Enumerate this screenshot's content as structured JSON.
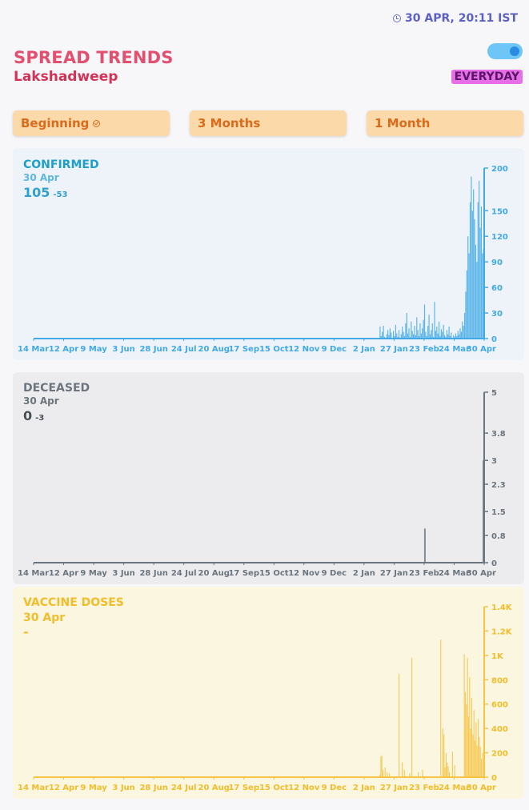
{
  "header": {
    "timestamp": "30 APR, 20:11 IST",
    "title": "SPREAD TRENDS",
    "subtitle": "Lakshadweep",
    "mode_label": "EVERYDAY"
  },
  "tabs": [
    {
      "label": "Beginning",
      "selected": true
    },
    {
      "label": "3 Months",
      "selected": false
    },
    {
      "label": "1 Month",
      "selected": false
    }
  ],
  "colors": {
    "confirmed": "#41a9e6",
    "confirmed_text": "#1e9fc9",
    "deceased": "#6c757d",
    "vaccine": "#f6c343"
  },
  "x_ticks": [
    "14 Mar",
    "12 Apr",
    "9 May",
    "3 Jun",
    "28 Jun",
    "24 Jul",
    "20 Aug",
    "17 Sep",
    "15 Oct",
    "12 Nov",
    "9 Dec",
    "2 Jan",
    "27 Jan",
    "23 Feb",
    "24 Mar",
    "30 Apr"
  ],
  "panels": {
    "confirmed": {
      "label": "CONFIRMED",
      "date": "30 Apr",
      "value": "105",
      "delta": "-53"
    },
    "deceased": {
      "label": "DECEASED",
      "date": "30 Apr",
      "value": "0",
      "delta": "-3"
    },
    "vaccine": {
      "label": "VACCINE DOSES",
      "date": "30 Apr",
      "value": "-",
      "delta": ""
    }
  },
  "chart_data": [
    {
      "type": "bar",
      "name": "CONFIRMED",
      "y_ticks": [
        "0",
        "30",
        "60",
        "90",
        "120",
        "150",
        "200"
      ],
      "ylim": [
        0,
        200
      ],
      "x_range": [
        "14 Mar",
        "30 Apr"
      ],
      "values_note_excluded": true,
      "values": [
        0,
        0,
        0,
        0,
        0,
        0,
        0,
        0,
        0,
        0,
        0,
        0,
        0,
        0,
        0,
        0,
        0,
        0,
        0,
        0,
        0,
        0,
        0,
        0,
        0,
        0,
        0,
        0,
        0,
        0,
        0,
        0,
        0,
        0,
        0,
        0,
        0,
        0,
        0,
        0,
        0,
        0,
        0,
        0,
        0,
        0,
        0,
        0,
        0,
        0,
        0,
        0,
        0,
        0,
        0,
        0,
        0,
        0,
        0,
        0,
        0,
        0,
        0,
        0,
        0,
        0,
        0,
        0,
        0,
        0,
        0,
        0,
        0,
        0,
        0,
        0,
        0,
        0,
        0,
        0,
        0,
        0,
        0,
        0,
        0,
        0,
        0,
        0,
        0,
        0,
        0,
        0,
        0,
        0,
        0,
        0,
        0,
        0,
        0,
        0,
        0,
        0,
        0,
        0,
        0,
        0,
        0,
        0,
        0,
        0,
        0,
        0,
        0,
        0,
        0,
        0,
        0,
        0,
        0,
        0,
        0,
        0,
        0,
        0,
        0,
        0,
        0,
        0,
        0,
        0,
        0,
        0,
        0,
        0,
        0,
        0,
        0,
        0,
        0,
        0,
        0,
        0,
        0,
        0,
        0,
        0,
        0,
        0,
        0,
        0,
        0,
        0,
        0,
        0,
        0,
        0,
        0,
        0,
        0,
        0,
        0,
        0,
        0,
        0,
        0,
        0,
        0,
        0,
        0,
        0,
        0,
        0,
        0,
        0,
        0,
        0,
        0,
        0,
        0,
        0,
        0,
        0,
        0,
        0,
        0,
        0,
        0,
        0,
        0,
        0,
        0,
        0,
        0,
        0,
        0,
        0,
        0,
        0,
        0,
        0,
        0,
        0,
        0,
        0,
        0,
        0,
        0,
        0,
        0,
        0,
        0,
        0,
        0,
        0,
        0,
        0,
        0,
        0,
        0,
        0,
        0,
        0,
        0,
        0,
        0,
        0,
        0,
        0,
        0,
        0,
        0,
        0,
        0,
        0,
        0,
        0,
        0,
        0,
        0,
        0,
        0,
        0,
        0,
        0,
        0,
        0,
        0,
        0,
        0,
        0,
        0,
        0,
        0,
        0,
        0,
        0,
        0,
        0,
        0,
        0,
        0,
        0,
        0,
        0,
        0,
        0,
        0,
        0,
        0,
        0,
        0,
        0,
        0,
        0,
        0,
        0,
        0,
        0,
        0,
        0,
        0,
        0,
        0,
        0,
        0,
        0,
        0,
        0,
        0,
        0,
        0,
        0,
        0,
        0,
        0,
        0,
        0,
        0,
        0,
        0,
        0,
        0,
        0,
        0,
        0,
        0,
        0,
        0,
        0,
        0,
        0,
        14,
        3,
        8,
        15,
        2,
        0,
        5,
        10,
        4,
        12,
        7,
        0,
        9,
        3,
        16,
        6,
        2,
        10,
        0,
        5,
        14,
        8,
        3,
        18,
        30,
        6,
        12,
        2,
        20,
        9,
        5,
        15,
        4,
        25,
        10,
        3,
        18,
        6,
        12,
        22,
        40,
        8,
        3,
        15,
        28,
        5,
        10,
        18,
        2,
        43,
        9,
        14,
        6,
        20,
        3,
        11,
        8,
        16,
        4,
        2,
        10,
        5,
        14,
        3,
        7,
        0,
        4,
        2,
        6,
        3,
        9,
        5,
        12,
        8,
        20,
        15,
        30,
        55,
        80,
        120,
        100,
        160,
        190,
        150,
        175,
        140,
        110,
        90,
        160,
        185,
        130,
        155,
        100,
        105
      ]
    },
    {
      "type": "bar",
      "name": "DECEASED",
      "y_ticks": [
        "0",
        "0.8",
        "1.5",
        "2.3",
        "3",
        "3.8",
        "5"
      ],
      "ylim": [
        0,
        5
      ],
      "spikes": [
        {
          "date": "23 Feb",
          "value": 1
        },
        {
          "date": "30 Apr",
          "value": 3
        }
      ]
    },
    {
      "type": "bar",
      "name": "VACCINE DOSES",
      "y_ticks": [
        "0",
        "200",
        "400",
        "600",
        "800",
        "1K",
        "1.2K",
        "1.4K"
      ],
      "ylim": [
        0,
        1400
      ],
      "values": [
        0,
        0,
        0,
        0,
        0,
        0,
        0,
        0,
        0,
        0,
        0,
        0,
        0,
        0,
        0,
        0,
        0,
        0,
        0,
        0,
        0,
        0,
        0,
        0,
        0,
        0,
        0,
        0,
        0,
        0,
        0,
        0,
        0,
        0,
        0,
        0,
        0,
        0,
        0,
        0,
        0,
        0,
        0,
        0,
        0,
        0,
        0,
        0,
        0,
        0,
        0,
        0,
        0,
        0,
        0,
        0,
        0,
        0,
        0,
        0,
        0,
        0,
        0,
        0,
        0,
        0,
        0,
        0,
        0,
        0,
        0,
        0,
        0,
        0,
        0,
        0,
        0,
        0,
        0,
        0,
        0,
        0,
        0,
        0,
        0,
        0,
        0,
        0,
        0,
        0,
        0,
        0,
        0,
        0,
        0,
        0,
        0,
        0,
        0,
        0,
        0,
        0,
        0,
        0,
        0,
        0,
        0,
        0,
        0,
        0,
        0,
        0,
        0,
        0,
        0,
        0,
        0,
        0,
        0,
        0,
        0,
        0,
        0,
        0,
        0,
        0,
        0,
        0,
        0,
        0,
        0,
        0,
        0,
        0,
        0,
        0,
        0,
        0,
        0,
        0,
        0,
        0,
        0,
        0,
        0,
        0,
        0,
        0,
        0,
        0,
        0,
        0,
        0,
        0,
        0,
        0,
        0,
        0,
        0,
        0,
        0,
        0,
        0,
        0,
        0,
        0,
        0,
        0,
        0,
        0,
        0,
        0,
        0,
        0,
        0,
        0,
        0,
        0,
        0,
        0,
        0,
        0,
        0,
        0,
        0,
        0,
        0,
        0,
        0,
        0,
        0,
        0,
        0,
        0,
        0,
        0,
        0,
        0,
        0,
        0,
        0,
        0,
        0,
        0,
        0,
        0,
        0,
        0,
        0,
        0,
        0,
        0,
        0,
        0,
        0,
        0,
        0,
        0,
        0,
        0,
        0,
        0,
        0,
        0,
        0,
        0,
        0,
        0,
        0,
        0,
        0,
        0,
        0,
        0,
        0,
        0,
        0,
        0,
        0,
        0,
        0,
        0,
        0,
        0,
        0,
        0,
        0,
        0,
        0,
        0,
        0,
        0,
        0,
        0,
        0,
        0,
        0,
        0,
        0,
        0,
        0,
        0,
        0,
        0,
        0,
        0,
        0,
        0,
        0,
        0,
        0,
        0,
        0,
        0,
        0,
        0,
        0,
        0,
        0,
        0,
        0,
        0,
        0,
        0,
        0,
        0,
        0,
        0,
        0,
        0,
        0,
        0,
        0,
        0,
        0,
        0,
        0,
        0,
        0,
        0,
        0,
        0,
        0,
        0,
        0,
        0,
        0,
        0,
        0,
        0,
        0,
        0,
        0,
        0,
        0,
        0,
        0,
        0,
        0,
        0,
        0,
        0,
        0,
        20,
        170,
        180,
        60,
        0,
        80,
        0,
        40,
        0,
        30,
        0,
        0,
        0,
        0,
        0,
        0,
        0,
        0,
        850,
        0,
        0,
        120,
        0,
        60,
        0,
        0,
        0,
        0,
        30,
        0,
        980,
        0,
        0,
        0,
        0,
        0,
        40,
        0,
        0,
        0,
        60,
        0,
        0,
        0,
        0,
        0,
        0,
        0,
        0,
        0,
        0,
        0,
        0,
        0,
        0,
        0,
        0,
        1130,
        0,
        400,
        350,
        80,
        200,
        120,
        90,
        40,
        0,
        0,
        210,
        0,
        100,
        0,
        0,
        0,
        0,
        0,
        0,
        0,
        0,
        1010,
        700,
        600,
        980,
        500,
        820,
        400,
        650,
        350,
        550,
        300,
        450,
        260,
        480,
        330,
        250,
        150,
        200,
        0
      ]
    }
  ]
}
